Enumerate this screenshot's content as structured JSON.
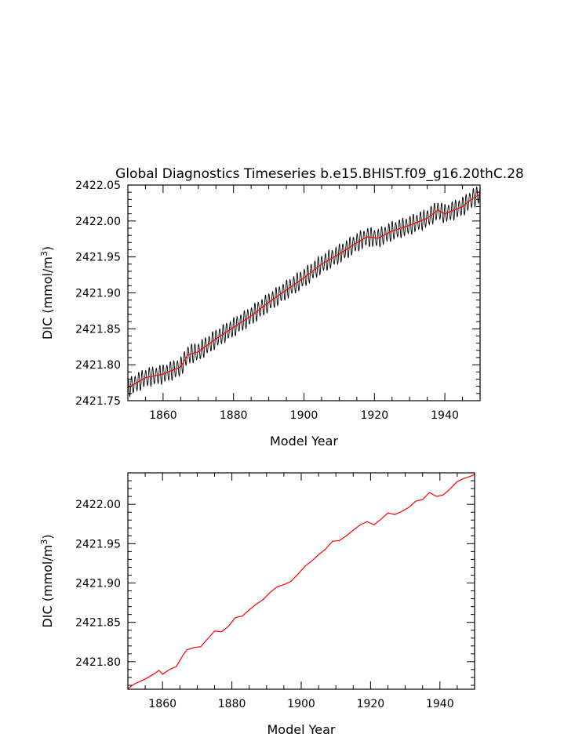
{
  "chart_data": [
    {
      "type": "line",
      "title": "Global Diagnostics Timeseries b.e15.BHIST.f09_g16.20thC.28",
      "xlabel": "Model Year",
      "ylabel": "DIC (mmol/m3)",
      "ylabel_parts": [
        "DIC (mmol/m",
        "3",
        ")"
      ],
      "xlim": [
        1850,
        1950
      ],
      "ylim": [
        2421.75,
        2422.05
      ],
      "xticks": [
        1860,
        1880,
        1900,
        1920,
        1940
      ],
      "xtick_labels": [
        "1860",
        "1880",
        "1900",
        "1920",
        "1940"
      ],
      "yticks": [
        2421.75,
        2421.8,
        2421.85,
        2421.9,
        2421.95,
        2422.0,
        2422.05
      ],
      "ytick_labels": [
        "2421.75",
        "2421.80",
        "2421.85",
        "2421.90",
        "2421.95",
        "2422.00",
        "2422.05"
      ],
      "grid": false,
      "colors": {
        "monthly": "#000000",
        "annual": "#ff0000"
      },
      "monthly_amplitude": 0.012,
      "series": [
        {
          "role": "annual",
          "x": [
            1850,
            1855,
            1860,
            1865,
            1867,
            1870,
            1875,
            1880,
            1885,
            1890,
            1895,
            1900,
            1905,
            1910,
            1915,
            1918,
            1921,
            1925,
            1930,
            1935,
            1938,
            1940,
            1945,
            1948,
            1950
          ],
          "values": [
            2421.768,
            2421.782,
            2421.787,
            2421.797,
            2421.814,
            2421.818,
            2421.836,
            2421.852,
            2421.868,
            2421.887,
            2421.904,
            2421.921,
            2421.94,
            2421.954,
            2421.97,
            2421.978,
            2421.976,
            2421.986,
            2421.994,
            2422.004,
            2422.015,
            2422.01,
            2422.02,
            2422.032,
            2422.037
          ]
        }
      ]
    },
    {
      "type": "line",
      "title": "",
      "xlabel": "Model Year",
      "ylabel": "DIC (mmol/m3)",
      "ylabel_parts": [
        "DIC (mmol/m",
        "3",
        ")"
      ],
      "xlim": [
        1850,
        1950
      ],
      "ylim": [
        2421.765,
        2422.04
      ],
      "xticks": [
        1860,
        1880,
        1900,
        1920,
        1940
      ],
      "xtick_labels": [
        "1860",
        "1880",
        "1900",
        "1920",
        "1940"
      ],
      "yticks": [
        2421.8,
        2421.85,
        2421.9,
        2421.95,
        2422.0
      ],
      "ytick_labels": [
        "2421.80",
        "2421.85",
        "2421.90",
        "2421.95",
        "2422.00"
      ],
      "grid": false,
      "colors": {
        "annual": "#ff0000"
      },
      "series": [
        {
          "role": "annual",
          "x": [
            1850,
            1852,
            1855,
            1857,
            1859,
            1860,
            1862,
            1864,
            1866,
            1867,
            1869,
            1871,
            1873,
            1875,
            1877,
            1879,
            1881,
            1883,
            1885,
            1887,
            1889,
            1891,
            1893,
            1895,
            1897,
            1899,
            1901,
            1903,
            1905,
            1907,
            1909,
            1911,
            1913,
            1915,
            1917,
            1919,
            1921,
            1923,
            1925,
            1927,
            1929,
            1931,
            1933,
            1935,
            1937,
            1939,
            1941,
            1943,
            1945,
            1947,
            1949,
            1950
          ],
          "values": [
            2421.766,
            2421.772,
            2421.778,
            2421.783,
            2421.789,
            2421.784,
            2421.79,
            2421.794,
            2421.809,
            2421.815,
            2421.818,
            2421.819,
            2421.829,
            2421.839,
            2421.838,
            2421.845,
            2421.856,
            2421.858,
            2421.866,
            2421.873,
            2421.879,
            2421.888,
            2421.895,
            2421.898,
            2421.902,
            2421.911,
            2421.921,
            2421.928,
            2421.936,
            2421.943,
            2421.953,
            2421.954,
            2421.96,
            2421.967,
            2421.974,
            2421.978,
            2421.974,
            2421.981,
            2421.989,
            2421.987,
            2421.991,
            2421.996,
            2422.004,
            2422.006,
            2422.015,
            2422.01,
            2422.012,
            2422.02,
            2422.029,
            2422.033,
            2422.036,
            2422.038
          ]
        }
      ]
    }
  ]
}
